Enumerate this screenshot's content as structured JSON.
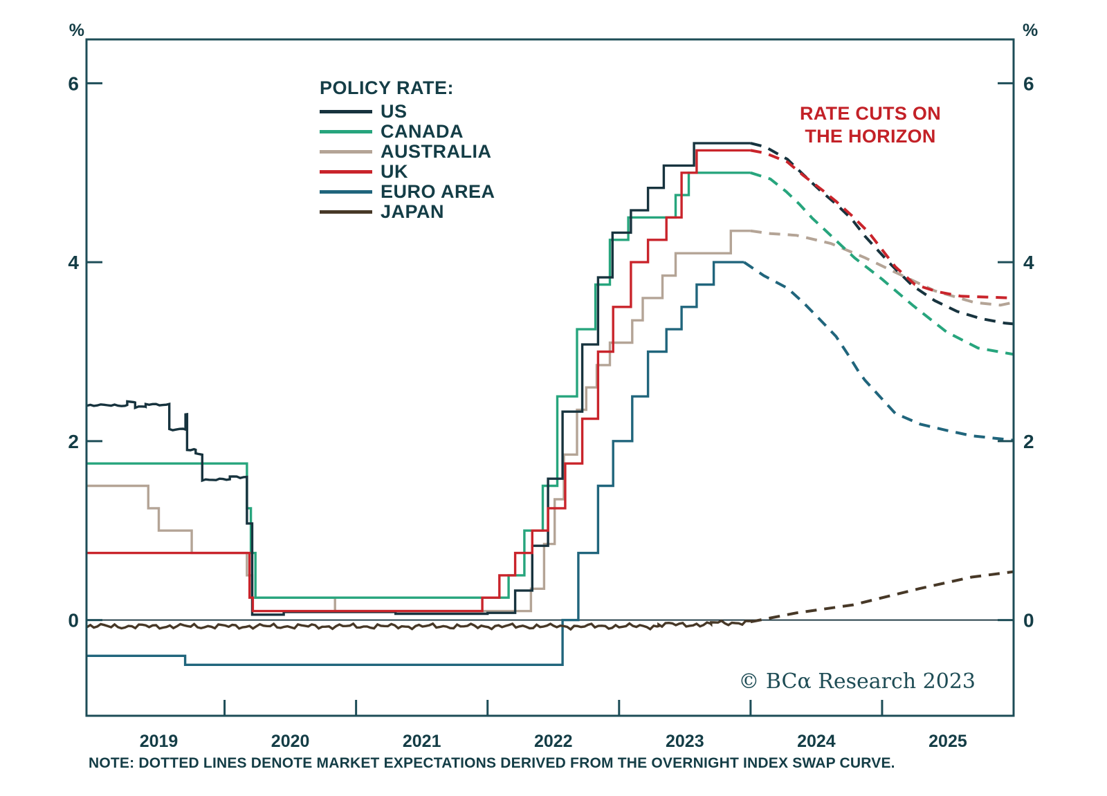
{
  "units": {
    "left": "%",
    "right": "%"
  },
  "legend": {
    "title": "POLICY RATE:",
    "items": [
      {
        "label": "US"
      },
      {
        "label": "CANADA"
      },
      {
        "label": "AUSTRALIA"
      },
      {
        "label": "UK"
      },
      {
        "label": "EURO AREA"
      },
      {
        "label": "JAPAN"
      }
    ]
  },
  "annotation": {
    "line1": "RATE CUTS ON",
    "line2": "THE HORIZON",
    "color": "#c32127"
  },
  "copyright": "© BCα Research 2023",
  "note": "NOTE: DOTTED LINES DENOTE MARKET EXPECTATIONS DERIVED FROM THE OVERNIGHT INDEX SWAP CURVE.",
  "chart_data": {
    "type": "line",
    "title": "",
    "xlabel": "",
    "ylabel": "%",
    "grid": false,
    "legend_position": "upper-left",
    "xlim": [
      2018.95,
      2026.0
    ],
    "ylim": [
      -1.07,
      6.49
    ],
    "y_ticks": [
      0,
      2,
      4,
      6
    ],
    "x_year_boundary_ticks": [
      2020,
      2021,
      2022,
      2023,
      2024,
      2025
    ],
    "x_year_labels": [
      2019,
      2020,
      2021,
      2022,
      2023,
      2024,
      2025
    ],
    "axis_color": "#1d4d57",
    "text_color": "#143d46",
    "series": [
      {
        "name": "US",
        "color": "#17333e",
        "noise": {
          "amp": 1.8,
          "until": 2020.15
        },
        "history": [
          [
            2018.953,
            2.4
          ],
          [
            2019.26,
            2.44
          ],
          [
            2019.32,
            2.38
          ],
          [
            2019.4,
            2.41
          ],
          [
            2019.58,
            2.13
          ],
          [
            2019.703,
            2.3
          ],
          [
            2019.715,
            1.9
          ],
          [
            2019.78,
            1.86
          ],
          [
            2019.83,
            1.57
          ],
          [
            2020.04,
            1.6
          ],
          [
            2020.17,
            1.08
          ],
          [
            2020.21,
            0.06
          ],
          [
            2020.45,
            0.09
          ],
          [
            2021.3,
            0.07
          ],
          [
            2022.0,
            0.08
          ],
          [
            2022.21,
            0.33
          ],
          [
            2022.34,
            0.83
          ],
          [
            2022.46,
            1.58
          ],
          [
            2022.57,
            2.33
          ],
          [
            2022.72,
            3.08
          ],
          [
            2022.84,
            3.83
          ],
          [
            2022.95,
            4.33
          ],
          [
            2023.09,
            4.58
          ],
          [
            2023.22,
            4.83
          ],
          [
            2023.34,
            5.08
          ],
          [
            2023.57,
            5.33
          ],
          [
            2024.0,
            5.33
          ]
        ],
        "expectations": [
          [
            2024.0,
            5.33
          ],
          [
            2024.11,
            5.29
          ],
          [
            2024.28,
            5.15
          ],
          [
            2024.4,
            4.98
          ],
          [
            2024.53,
            4.8
          ],
          [
            2024.65,
            4.65
          ],
          [
            2024.77,
            4.48
          ],
          [
            2024.87,
            4.29
          ],
          [
            2025.07,
            3.97
          ],
          [
            2025.23,
            3.74
          ],
          [
            2025.4,
            3.57
          ],
          [
            2025.57,
            3.45
          ],
          [
            2025.75,
            3.37
          ],
          [
            2025.93,
            3.32
          ],
          [
            2026.0,
            3.31
          ]
        ]
      },
      {
        "name": "CANADA",
        "color": "#27a57d",
        "history": [
          [
            2018.953,
            1.75
          ],
          [
            2020.17,
            1.25
          ],
          [
            2020.2,
            0.75
          ],
          [
            2020.235,
            0.25
          ],
          [
            2022.16,
            0.5
          ],
          [
            2022.28,
            1.0
          ],
          [
            2022.42,
            1.5
          ],
          [
            2022.53,
            2.5
          ],
          [
            2022.68,
            3.25
          ],
          [
            2022.82,
            3.75
          ],
          [
            2022.93,
            4.25
          ],
          [
            2023.07,
            4.5
          ],
          [
            2023.43,
            4.75
          ],
          [
            2023.53,
            5.0
          ],
          [
            2024.0,
            5.0
          ]
        ],
        "expectations": [
          [
            2024.0,
            5.0
          ],
          [
            2024.15,
            4.93
          ],
          [
            2024.27,
            4.79
          ],
          [
            2024.37,
            4.65
          ],
          [
            2024.47,
            4.49
          ],
          [
            2024.58,
            4.34
          ],
          [
            2024.68,
            4.2
          ],
          [
            2024.79,
            4.05
          ],
          [
            2025.0,
            3.81
          ],
          [
            2025.24,
            3.51
          ],
          [
            2025.49,
            3.22
          ],
          [
            2025.73,
            3.04
          ],
          [
            2026.0,
            2.97
          ]
        ]
      },
      {
        "name": "AUSTRALIA",
        "color": "#b4a496",
        "history": [
          [
            2018.953,
            1.5
          ],
          [
            2019.42,
            1.25
          ],
          [
            2019.5,
            1.0
          ],
          [
            2019.75,
            0.75
          ],
          [
            2020.17,
            0.5
          ],
          [
            2020.21,
            0.25
          ],
          [
            2020.84,
            0.1
          ],
          [
            2022.33,
            0.35
          ],
          [
            2022.43,
            0.85
          ],
          [
            2022.51,
            1.35
          ],
          [
            2022.58,
            1.85
          ],
          [
            2022.68,
            2.35
          ],
          [
            2022.75,
            2.6
          ],
          [
            2022.83,
            2.85
          ],
          [
            2022.93,
            3.1
          ],
          [
            2023.1,
            3.35
          ],
          [
            2023.18,
            3.6
          ],
          [
            2023.33,
            3.85
          ],
          [
            2023.43,
            4.1
          ],
          [
            2023.85,
            4.35
          ],
          [
            2024.0,
            4.35
          ]
        ],
        "expectations": [
          [
            2024.0,
            4.35
          ],
          [
            2024.15,
            4.32
          ],
          [
            2024.35,
            4.3
          ],
          [
            2024.61,
            4.21
          ],
          [
            2024.87,
            4.05
          ],
          [
            2025.14,
            3.86
          ],
          [
            2025.4,
            3.68
          ],
          [
            2025.7,
            3.55
          ],
          [
            2025.9,
            3.52
          ],
          [
            2026.0,
            3.55
          ]
        ]
      },
      {
        "name": "UK",
        "color": "#c9242b",
        "history": [
          [
            2018.953,
            0.75
          ],
          [
            2020.19,
            0.25
          ],
          [
            2020.215,
            0.1
          ],
          [
            2021.96,
            0.25
          ],
          [
            2022.09,
            0.5
          ],
          [
            2022.21,
            0.75
          ],
          [
            2022.34,
            1.0
          ],
          [
            2022.46,
            1.25
          ],
          [
            2022.59,
            1.75
          ],
          [
            2022.72,
            2.25
          ],
          [
            2022.84,
            3.0
          ],
          [
            2022.955,
            3.5
          ],
          [
            2023.09,
            4.0
          ],
          [
            2023.22,
            4.25
          ],
          [
            2023.36,
            4.5
          ],
          [
            2023.475,
            5.0
          ],
          [
            2023.59,
            5.25
          ],
          [
            2024.0,
            5.25
          ]
        ],
        "expectations": [
          [
            2024.0,
            5.25
          ],
          [
            2024.11,
            5.22
          ],
          [
            2024.28,
            5.12
          ],
          [
            2024.4,
            4.97
          ],
          [
            2024.55,
            4.8
          ],
          [
            2024.65,
            4.68
          ],
          [
            2024.77,
            4.52
          ],
          [
            2024.9,
            4.33
          ],
          [
            2025.1,
            3.95
          ],
          [
            2025.25,
            3.75
          ],
          [
            2025.42,
            3.67
          ],
          [
            2025.6,
            3.62
          ],
          [
            2025.8,
            3.61
          ],
          [
            2026.0,
            3.6
          ]
        ]
      },
      {
        "name": "EURO AREA",
        "color": "#20657c",
        "history": [
          [
            2018.953,
            -0.4
          ],
          [
            2019.7,
            -0.5
          ],
          [
            2022.57,
            0.0
          ],
          [
            2022.69,
            0.75
          ],
          [
            2022.84,
            1.5
          ],
          [
            2022.955,
            2.0
          ],
          [
            2023.1,
            2.5
          ],
          [
            2023.22,
            3.0
          ],
          [
            2023.36,
            3.25
          ],
          [
            2023.475,
            3.5
          ],
          [
            2023.59,
            3.75
          ],
          [
            2023.72,
            4.0
          ],
          [
            2023.95,
            4.0
          ]
        ],
        "expectations": [
          [
            2023.95,
            4.0
          ],
          [
            2024.1,
            3.85
          ],
          [
            2024.28,
            3.71
          ],
          [
            2024.4,
            3.55
          ],
          [
            2024.52,
            3.37
          ],
          [
            2024.65,
            3.17
          ],
          [
            2024.74,
            2.97
          ],
          [
            2024.82,
            2.78
          ],
          [
            2024.87,
            2.68
          ],
          [
            2025.1,
            2.31
          ],
          [
            2025.29,
            2.19
          ],
          [
            2025.49,
            2.12
          ],
          [
            2025.68,
            2.06
          ],
          [
            2026.0,
            2.01
          ]
        ]
      },
      {
        "name": "JAPAN",
        "color": "#473827",
        "noise": {
          "amp": 4.5,
          "until": 2024.0
        },
        "history": [
          [
            2018.953,
            -0.07
          ],
          [
            2022.5,
            -0.07
          ],
          [
            2023.3,
            -0.05
          ],
          [
            2023.7,
            -0.03
          ],
          [
            2024.0,
            -0.02
          ]
        ],
        "expectations": [
          [
            2024.0,
            -0.02
          ],
          [
            2024.35,
            0.08
          ],
          [
            2024.78,
            0.17
          ],
          [
            2025.28,
            0.35
          ],
          [
            2025.68,
            0.48
          ],
          [
            2026.0,
            0.54
          ]
        ]
      }
    ]
  }
}
